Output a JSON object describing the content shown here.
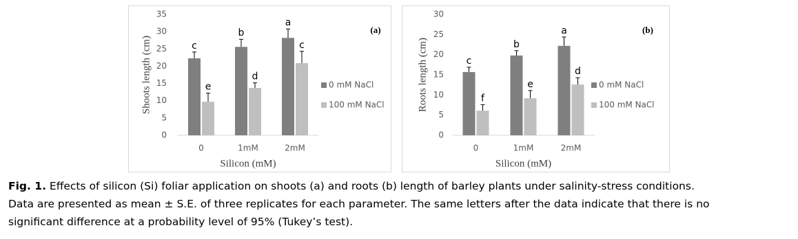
{
  "chart_data": [
    {
      "type": "bar",
      "title": "(a)",
      "ylabel": "Shoots length (cm)",
      "xlabel": "Silicon (mM)",
      "categories": [
        "0",
        "1mM",
        "2mM"
      ],
      "series": [
        {
          "name": "0 mM NaCl",
          "color": "#7f7f7f",
          "values": [
            22.3,
            25.6,
            28.2
          ],
          "errors": [
            1.8,
            2.2,
            2.6
          ],
          "letters": [
            "c",
            "b",
            "a"
          ]
        },
        {
          "name": "100 mM NaCl",
          "color": "#bfbfbf",
          "values": [
            9.7,
            13.7,
            20.9
          ],
          "errors": [
            2.5,
            1.5,
            3.4
          ],
          "letters": [
            "e",
            "d",
            "c"
          ]
        }
      ],
      "ylim": [
        0,
        35
      ],
      "yticks": [
        0,
        5,
        10,
        15,
        20,
        25,
        30,
        35
      ],
      "legend": "right"
    },
    {
      "type": "bar",
      "title": "(b)",
      "ylabel": "Roots length (cm)",
      "xlabel": "Silicon (mM)",
      "categories": [
        "0",
        "1mM",
        "2mM"
      ],
      "series": [
        {
          "name": "0 mM NaCl",
          "color": "#7f7f7f",
          "values": [
            15.7,
            19.8,
            22.2
          ],
          "errors": [
            1.2,
            1.2,
            2.2
          ],
          "letters": [
            "c",
            "b",
            "a"
          ]
        },
        {
          "name": "100 mM NaCl",
          "color": "#bfbfbf",
          "values": [
            6.1,
            9.2,
            12.6
          ],
          "errors": [
            1.5,
            1.9,
            1.7
          ],
          "letters": [
            "f",
            "e",
            "d"
          ]
        }
      ],
      "ylim": [
        0,
        30
      ],
      "yticks": [
        0,
        5,
        10,
        15,
        20,
        25,
        30
      ],
      "legend": "right"
    }
  ],
  "caption": {
    "label": "Fig. 1.",
    "lines": [
      "Effects of silicon (Si) foliar application on shoots (a) and roots (b) length of barley plants under salinity-stress conditions.",
      "Data are presented as mean ± S.E. of three replicates for each parameter. The same letters after the data indicate that there is no",
      "significant difference at a probability level of 95% (Tukey’s test)."
    ]
  }
}
